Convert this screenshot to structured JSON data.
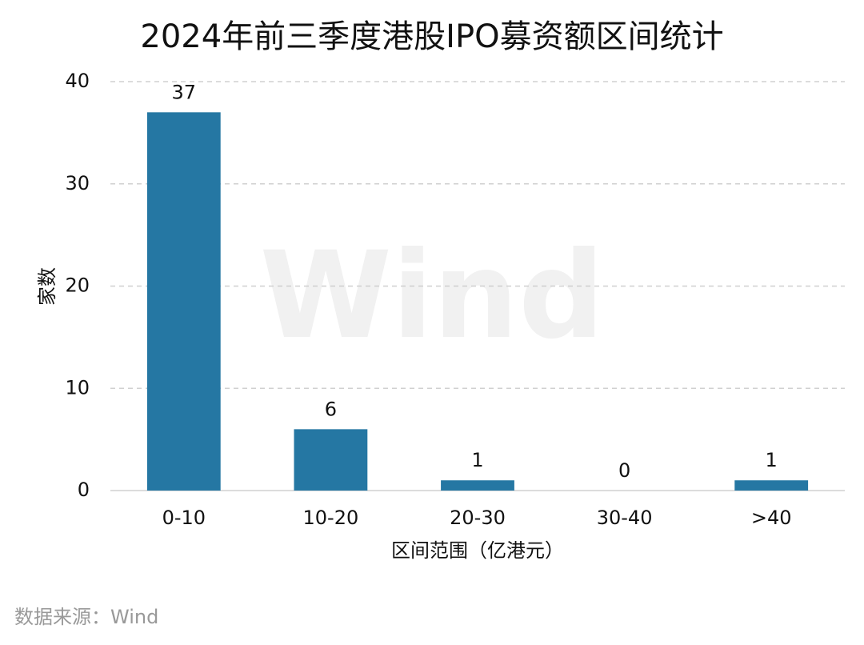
{
  "chart_data": {
    "type": "bar",
    "title": "2024年前三季度港股IPO募资额区间统计",
    "categories": [
      "0-10",
      "10-20",
      "20-30",
      "30-40",
      ">40"
    ],
    "values": [
      37,
      6,
      1,
      0,
      1
    ],
    "color": "#2577a3",
    "ylim": [
      0,
      40
    ],
    "yticks": [
      0,
      10,
      20,
      30,
      40
    ],
    "grid": true,
    "y_label": "家数",
    "x_label": "区间范围（亿港元）",
    "watermark": "Wind",
    "source": "数据来源：Wind"
  }
}
